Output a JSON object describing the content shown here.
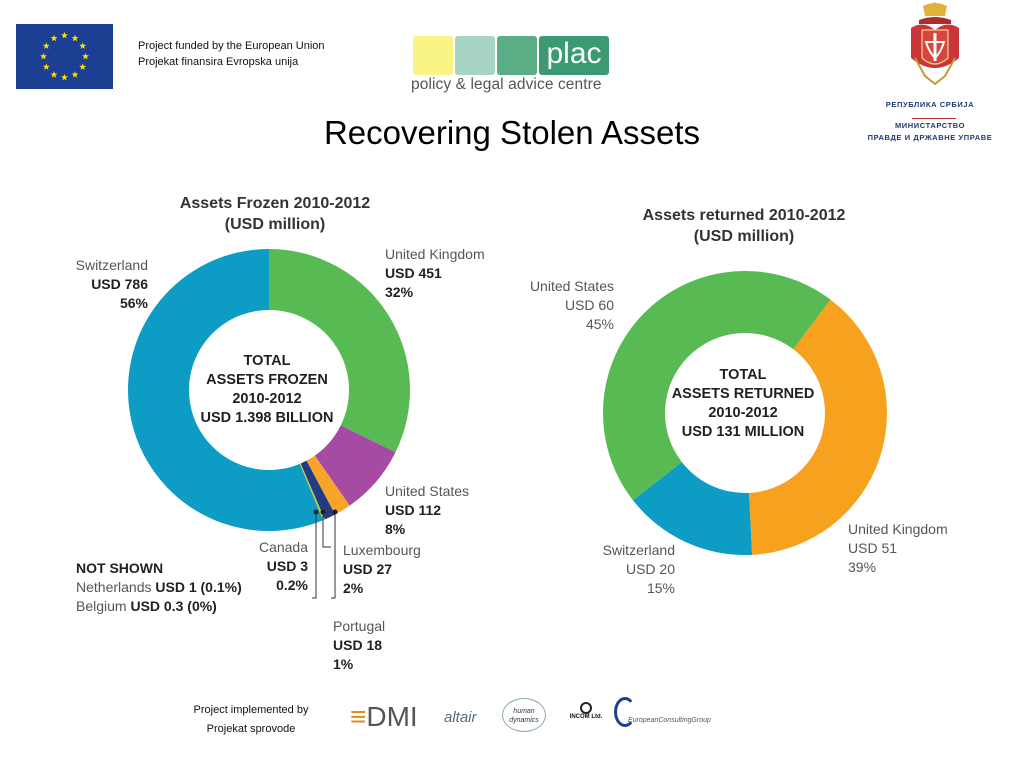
{
  "header": {
    "funded_en": "Project funded by the European Union",
    "funded_sr": "Projekat finansira Evropska unija",
    "plac_abbr": "plac",
    "plac_name": "policy & legal advice centre",
    "serbia_republic": "РЕПУБЛИКА СРБИЈА",
    "serbia_ministry": "МИНИСТАРСТВО",
    "serbia_dept": "ПРАВДЕ И ДРЖАВНЕ УПРАВЕ"
  },
  "title": "Recovering Stolen Assets",
  "chart_data": [
    {
      "type": "pie",
      "donut": true,
      "title": "Assets Frozen 2010-2012",
      "subtitle": "(USD million)",
      "center_text": [
        "TOTAL",
        "ASSETS FROZEN",
        "2010-2012",
        "USD 1.398 BILLION"
      ],
      "slices": [
        {
          "name": "United Kingdom",
          "value": 451,
          "value_label": "USD 451",
          "pct_label": "32%",
          "color": "#57ba53"
        },
        {
          "name": "United States",
          "value": 112,
          "value_label": "USD 112",
          "pct_label": "8%",
          "color": "#a54ba3"
        },
        {
          "name": "Luxembourg",
          "value": 27,
          "value_label": "USD 27",
          "pct_label": "2%",
          "color": "#f7a42a"
        },
        {
          "name": "Portugal",
          "value": 18,
          "value_label": "USD 18",
          "pct_label": "1%",
          "color": "#243a83"
        },
        {
          "name": "Canada",
          "value": 3,
          "value_label": "USD 3",
          "pct_label": "0.2%",
          "color": "#b7cc3a"
        },
        {
          "name": "Switzerland",
          "value": 786,
          "value_label": "USD 786",
          "pct_label": "56%",
          "color": "#0d9cc3"
        }
      ],
      "not_shown": {
        "heading": "NOT SHOWN",
        "items": [
          {
            "name": "Netherlands",
            "value_label": "USD 1 (0.1%)"
          },
          {
            "name": "Belgium",
            "value_label": "USD 0.3 (0%)"
          }
        ]
      }
    },
    {
      "type": "pie",
      "donut": true,
      "title": "Assets returned 2010-2012",
      "subtitle": "(USD million)",
      "center_text": [
        "TOTAL",
        "ASSETS RETURNED",
        "2010-2012",
        "USD 131 MILLION"
      ],
      "slices": [
        {
          "name": "United Kingdom",
          "value": 51,
          "value_label": "USD 51",
          "pct_label": "39%",
          "color": "#f7a21e"
        },
        {
          "name": "Switzerland",
          "value": 20,
          "value_label": "USD 20",
          "pct_label": "15%",
          "color": "#0d9cc3"
        },
        {
          "name": "United States",
          "value": 60,
          "value_label": "USD 60",
          "pct_label": "45%",
          "color": "#57ba53"
        }
      ]
    }
  ],
  "footer": {
    "implemented_en": "Project implemented by",
    "implemented_sr": "Projekat sprovode",
    "partners": [
      "DMI",
      "altair",
      "human dynamics",
      "INCOM Ltd.",
      "EuropeanConsultingGroup"
    ]
  }
}
